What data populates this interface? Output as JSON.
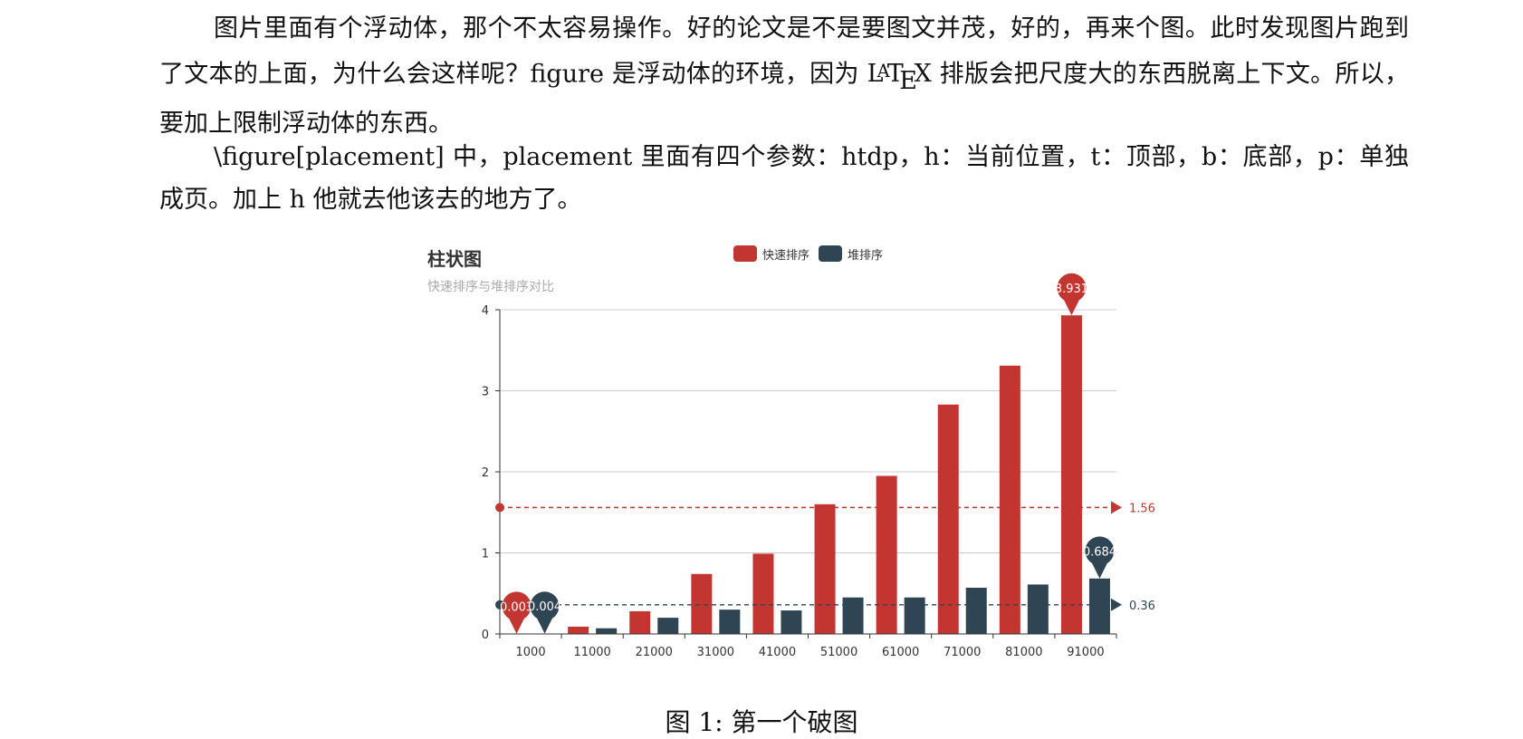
{
  "document": {
    "paragraph1_before_latex": "图片里面有个浮动体，那个不太容易操作。好的论文是不是要图文并茂，好的，再来个图。此时发现图片跑到了文本的上面，为什么会这样呢？figure 是浮动体的环境，因为 ",
    "latex_logo": {
      "l": "L",
      "a": "A",
      "t": "T",
      "e": "E",
      "x": "X"
    },
    "paragraph1_after_latex": " 排版会把尺度大的东西脱离上下文。所以，要加上限制浮动体的东西。",
    "paragraph2": "\\figure[placement] 中，placement 里面有四个参数：htdp，h：当前位置，t：顶部，b：底部，p：单独成页。加上 h 他就去他该去的地方了。",
    "caption": "图 1: 第一个破图"
  },
  "chart_data": {
    "type": "bar",
    "title": "柱状图",
    "subtitle": "快速排序与堆排序对比",
    "categories": [
      "1000",
      "11000",
      "21000",
      "31000",
      "41000",
      "51000",
      "61000",
      "71000",
      "81000",
      "91000"
    ],
    "series": [
      {
        "name": "快速排序",
        "color": "#c23531",
        "values": [
          0.003,
          0.09,
          0.28,
          0.74,
          0.99,
          1.6,
          1.95,
          2.83,
          3.31,
          3.931
        ]
      },
      {
        "name": "堆排序",
        "color": "#2f4554",
        "values": [
          0.004,
          0.07,
          0.2,
          0.3,
          0.29,
          0.45,
          0.45,
          0.57,
          0.61,
          0.684
        ]
      }
    ],
    "ylim": [
      0,
      4
    ],
    "yticks": [
      "0",
      "1",
      "2",
      "3",
      "4"
    ],
    "grid": true,
    "legend_position": "top-center",
    "mark_points": [
      {
        "series": 0,
        "index": 0,
        "label": "0.003",
        "kind": "min"
      },
      {
        "series": 1,
        "index": 0,
        "label": "0.004",
        "kind": "min"
      },
      {
        "series": 0,
        "index": 9,
        "label": "3.931",
        "kind": "max"
      },
      {
        "series": 1,
        "index": 9,
        "label": "0.684",
        "kind": "max"
      }
    ],
    "mark_lines": [
      {
        "series": 0,
        "value": 1.56,
        "label": "1.56"
      },
      {
        "series": 1,
        "value": 0.36,
        "label": "0.36"
      }
    ],
    "axis_color": "#333333",
    "grid_color": "#cccccc",
    "label_color": "#333333"
  }
}
